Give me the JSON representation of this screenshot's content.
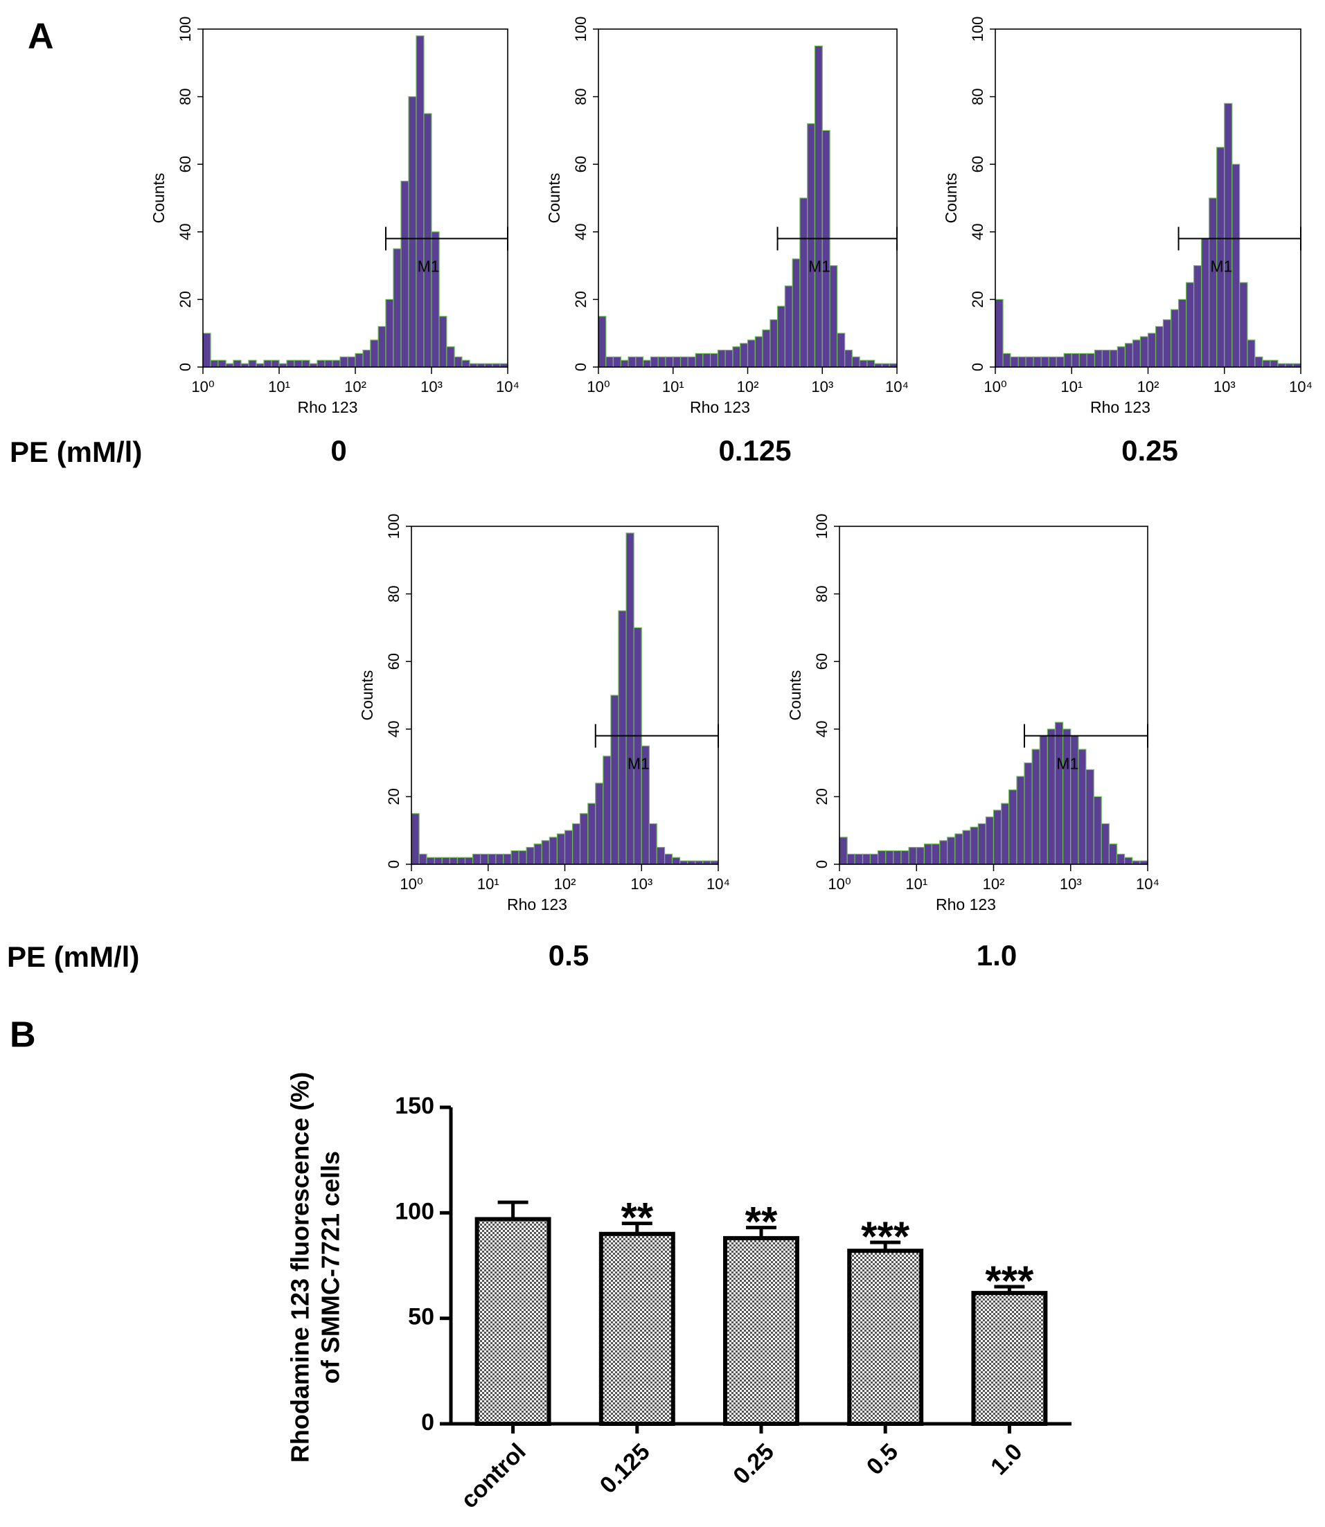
{
  "labels": {
    "panels": [
      "A",
      "B"
    ],
    "row_labels": [
      "PE (mM/l)",
      "PE (mM/l)"
    ]
  },
  "chart_data": [
    {
      "type": "histogram",
      "caption": "0",
      "xlabel": "Rho 123",
      "ylabel": "Counts",
      "xscale": "log",
      "color": "#5b3f95",
      "edge_color": "#6abf4b",
      "xlim": [
        1,
        10000
      ],
      "ylim": [
        0,
        100
      ],
      "xticks": [
        {
          "value": 1,
          "label": "10⁰"
        },
        {
          "value": 10,
          "label": "10¹"
        },
        {
          "value": 100,
          "label": "10²"
        },
        {
          "value": 1000,
          "label": "10³"
        },
        {
          "value": 10000,
          "label": "10⁴"
        }
      ],
      "yticks": [
        0,
        20,
        40,
        60,
        80,
        100
      ],
      "gate": {
        "label": "M1",
        "range": [
          251,
          10000
        ],
        "y": 38
      },
      "bins": [
        1,
        1.26,
        1.58,
        2,
        2.51,
        3.16,
        3.98,
        5.01,
        6.31,
        7.94,
        10,
        12.6,
        15.8,
        20,
        25.1,
        31.6,
        39.8,
        50.1,
        63.1,
        79.4,
        100,
        126,
        158,
        200,
        251,
        316,
        398,
        501,
        631,
        794,
        1000,
        1260,
        1580,
        2000,
        2510,
        3160,
        3980,
        5010,
        6310,
        7940,
        10000
      ],
      "values": [
        10,
        2,
        2,
        1,
        2,
        1,
        2,
        1,
        2,
        2,
        1,
        2,
        2,
        2,
        1,
        2,
        2,
        2,
        3,
        3,
        4,
        5,
        8,
        12,
        20,
        35,
        55,
        80,
        98,
        75,
        40,
        15,
        6,
        3,
        2,
        1,
        1,
        1,
        1,
        1
      ]
    },
    {
      "type": "histogram",
      "caption": "0.125",
      "xlabel": "Rho 123",
      "ylabel": "Counts",
      "xscale": "log",
      "color": "#5b3f95",
      "edge_color": "#6abf4b",
      "xlim": [
        1,
        10000
      ],
      "ylim": [
        0,
        100
      ],
      "xticks": [
        {
          "value": 1,
          "label": "10⁰"
        },
        {
          "value": 10,
          "label": "10¹"
        },
        {
          "value": 100,
          "label": "10²"
        },
        {
          "value": 1000,
          "label": "10³"
        },
        {
          "value": 10000,
          "label": "10⁴"
        }
      ],
      "yticks": [
        0,
        20,
        40,
        60,
        80,
        100
      ],
      "gate": {
        "label": "M1",
        "range": [
          251,
          10000
        ],
        "y": 38
      },
      "bins": [
        1,
        1.26,
        1.58,
        2,
        2.51,
        3.16,
        3.98,
        5.01,
        6.31,
        7.94,
        10,
        12.6,
        15.8,
        20,
        25.1,
        31.6,
        39.8,
        50.1,
        63.1,
        79.4,
        100,
        126,
        158,
        200,
        251,
        316,
        398,
        501,
        631,
        794,
        1000,
        1260,
        1580,
        2000,
        2510,
        3160,
        3980,
        5010,
        6310,
        7940,
        10000
      ],
      "values": [
        15,
        3,
        3,
        2,
        3,
        3,
        2,
        3,
        3,
        3,
        3,
        3,
        3,
        4,
        4,
        4,
        5,
        5,
        6,
        7,
        8,
        9,
        11,
        14,
        18,
        24,
        32,
        50,
        72,
        95,
        70,
        30,
        10,
        5,
        3,
        2,
        2,
        1,
        1,
        1
      ]
    },
    {
      "type": "histogram",
      "caption": "0.25",
      "xlabel": "Rho 123",
      "ylabel": "Counts",
      "xscale": "log",
      "color": "#5b3f95",
      "edge_color": "#6abf4b",
      "xlim": [
        1,
        10000
      ],
      "ylim": [
        0,
        100
      ],
      "xticks": [
        {
          "value": 1,
          "label": "10⁰"
        },
        {
          "value": 10,
          "label": "10¹"
        },
        {
          "value": 100,
          "label": "10²"
        },
        {
          "value": 1000,
          "label": "10³"
        },
        {
          "value": 10000,
          "label": "10⁴"
        }
      ],
      "yticks": [
        0,
        20,
        40,
        60,
        80,
        100
      ],
      "gate": {
        "label": "M1",
        "range": [
          251,
          10000
        ],
        "y": 38
      },
      "bins": [
        1,
        1.26,
        1.58,
        2,
        2.51,
        3.16,
        3.98,
        5.01,
        6.31,
        7.94,
        10,
        12.6,
        15.8,
        20,
        25.1,
        31.6,
        39.8,
        50.1,
        63.1,
        79.4,
        100,
        126,
        158,
        200,
        251,
        316,
        398,
        501,
        631,
        794,
        1000,
        1260,
        1580,
        2000,
        2510,
        3160,
        3980,
        5010,
        6310,
        7940,
        10000
      ],
      "values": [
        20,
        4,
        3,
        3,
        3,
        3,
        3,
        3,
        3,
        4,
        4,
        4,
        4,
        5,
        5,
        5,
        6,
        7,
        8,
        9,
        10,
        12,
        14,
        17,
        20,
        25,
        30,
        38,
        50,
        65,
        78,
        60,
        25,
        8,
        3,
        2,
        2,
        1,
        1,
        1
      ]
    },
    {
      "type": "histogram",
      "caption": "0.5",
      "xlabel": "Rho 123",
      "ylabel": "Counts",
      "xscale": "log",
      "color": "#5b3f95",
      "edge_color": "#6abf4b",
      "xlim": [
        1,
        10000
      ],
      "ylim": [
        0,
        100
      ],
      "xticks": [
        {
          "value": 1,
          "label": "10⁰"
        },
        {
          "value": 10,
          "label": "10¹"
        },
        {
          "value": 100,
          "label": "10²"
        },
        {
          "value": 1000,
          "label": "10³"
        },
        {
          "value": 10000,
          "label": "10⁴"
        }
      ],
      "yticks": [
        0,
        20,
        40,
        60,
        80,
        100
      ],
      "gate": {
        "label": "M1",
        "range": [
          251,
          10000
        ],
        "y": 38
      },
      "bins": [
        1,
        1.26,
        1.58,
        2,
        2.51,
        3.16,
        3.98,
        5.01,
        6.31,
        7.94,
        10,
        12.6,
        15.8,
        20,
        25.1,
        31.6,
        39.8,
        50.1,
        63.1,
        79.4,
        100,
        126,
        158,
        200,
        251,
        316,
        398,
        501,
        631,
        794,
        1000,
        1260,
        1580,
        2000,
        2510,
        3160,
        3980,
        5010,
        6310,
        7940,
        10000
      ],
      "values": [
        15,
        3,
        2,
        2,
        2,
        2,
        2,
        2,
        3,
        3,
        3,
        3,
        3,
        4,
        4,
        5,
        6,
        7,
        8,
        9,
        10,
        12,
        15,
        18,
        24,
        32,
        50,
        75,
        98,
        70,
        35,
        12,
        5,
        3,
        2,
        1,
        1,
        1,
        1,
        1
      ]
    },
    {
      "type": "histogram",
      "caption": "1.0",
      "xlabel": "Rho 123",
      "ylabel": "Counts",
      "xscale": "log",
      "color": "#5b3f95",
      "edge_color": "#6abf4b",
      "xlim": [
        1,
        10000
      ],
      "ylim": [
        0,
        100
      ],
      "xticks": [
        {
          "value": 1,
          "label": "10⁰"
        },
        {
          "value": 10,
          "label": "10¹"
        },
        {
          "value": 100,
          "label": "10²"
        },
        {
          "value": 1000,
          "label": "10³"
        },
        {
          "value": 10000,
          "label": "10⁴"
        }
      ],
      "yticks": [
        0,
        20,
        40,
        60,
        80,
        100
      ],
      "gate": {
        "label": "M1",
        "range": [
          251,
          10000
        ],
        "y": 38
      },
      "bins": [
        1,
        1.26,
        1.58,
        2,
        2.51,
        3.16,
        3.98,
        5.01,
        6.31,
        7.94,
        10,
        12.6,
        15.8,
        20,
        25.1,
        31.6,
        39.8,
        50.1,
        63.1,
        79.4,
        100,
        126,
        158,
        200,
        251,
        316,
        398,
        501,
        631,
        794,
        1000,
        1260,
        1580,
        2000,
        2510,
        3160,
        3980,
        5010,
        6310,
        7940,
        10000
      ],
      "values": [
        8,
        3,
        3,
        3,
        3,
        4,
        4,
        4,
        4,
        5,
        5,
        6,
        6,
        7,
        8,
        9,
        10,
        11,
        12,
        14,
        16,
        18,
        22,
        26,
        30,
        34,
        38,
        40,
        42,
        40,
        38,
        34,
        28,
        20,
        12,
        6,
        3,
        2,
        1,
        1
      ]
    },
    {
      "type": "bar",
      "ylabel": [
        "Rhodamine 123 fluorescence (%)",
        "of SMMC-7721 cells"
      ],
      "categories": [
        "control",
        "0.125",
        "0.25",
        "0.5",
        "1.0"
      ],
      "values": [
        97,
        90,
        88,
        82,
        62
      ],
      "errors": [
        8,
        5,
        5,
        4,
        3
      ],
      "significance": [
        null,
        "**",
        "**",
        "***",
        "***"
      ],
      "color": "#000000",
      "ylim": [
        0,
        150
      ],
      "yticks": [
        0,
        50,
        100,
        150
      ]
    }
  ]
}
